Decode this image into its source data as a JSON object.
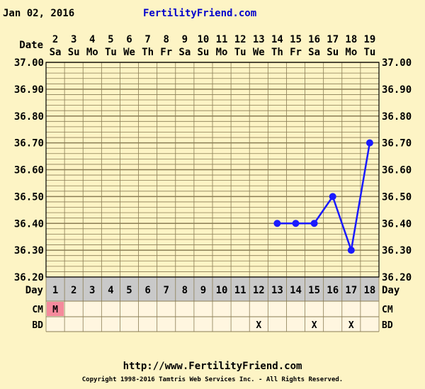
{
  "header": {
    "date": "Jan 02, 2016",
    "site_name": "FertilityFriend.com"
  },
  "footer": {
    "url": "http://www.FertilityFriend.com",
    "copyright": "Copyright 1998-2016 Tamtris Web Services Inc. - All Rights Reserved."
  },
  "chart_data": {
    "type": "line",
    "row_labels": {
      "date": "Date",
      "day": "Day",
      "cm": "CM",
      "bd": "BD"
    },
    "dates": [
      "2",
      "3",
      "4",
      "5",
      "6",
      "7",
      "8",
      "9",
      "10",
      "11",
      "12",
      "13",
      "14",
      "15",
      "16",
      "17",
      "18",
      "19"
    ],
    "weekdays": [
      "Sa",
      "Su",
      "Mo",
      "Tu",
      "We",
      "Th",
      "Fr",
      "Sa",
      "Su",
      "Mo",
      "Tu",
      "We",
      "Th",
      "Fr",
      "Sa",
      "Su",
      "Mo",
      "Tu"
    ],
    "days": [
      "1",
      "2",
      "3",
      "4",
      "5",
      "6",
      "7",
      "8",
      "9",
      "10",
      "11",
      "12",
      "13",
      "14",
      "15",
      "16",
      "17",
      "18"
    ],
    "ylim": [
      36.2,
      37.0
    ],
    "y_ticks": [
      "37.00",
      "36.90",
      "36.80",
      "36.70",
      "36.60",
      "36.50",
      "36.40",
      "36.30",
      "36.20"
    ],
    "series": [
      {
        "points": [
          [
            13,
            36.4
          ],
          [
            14,
            36.4
          ],
          [
            15,
            36.4
          ],
          [
            16,
            36.5
          ],
          [
            17,
            36.3
          ],
          [
            18,
            36.7
          ]
        ]
      }
    ],
    "cm": [
      {
        "day": 1,
        "text": "M"
      }
    ],
    "bd": [
      {
        "day": 12,
        "text": "X"
      },
      {
        "day": 15,
        "text": "X"
      },
      {
        "day": 17,
        "text": "X"
      }
    ],
    "colors": {
      "line": "#1a1aff",
      "grid": "#8a7d55",
      "plot_bg": "#fdf4c5",
      "day_row": "#c9c9c9",
      "cell_bg": "#fff6e0",
      "cm_marker": "#f58a9c"
    }
  }
}
